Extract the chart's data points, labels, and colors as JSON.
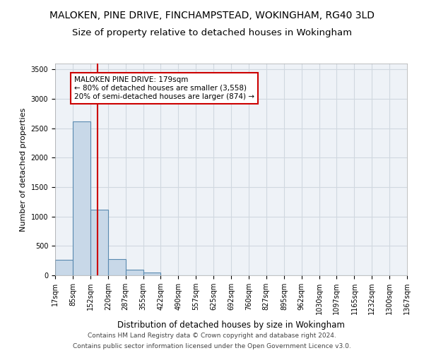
{
  "title": "MALOKEN, PINE DRIVE, FINCHAMPSTEAD, WOKINGHAM, RG40 3LD",
  "subtitle": "Size of property relative to detached houses in Wokingham",
  "xlabel": "Distribution of detached houses by size in Wokingham",
  "ylabel": "Number of detached properties",
  "bin_edges": [
    17,
    85,
    152,
    220,
    287,
    355,
    422,
    490,
    557,
    625,
    692,
    760,
    827,
    895,
    962,
    1030,
    1097,
    1165,
    1232,
    1300,
    1367
  ],
  "bar_heights": [
    270,
    2620,
    1120,
    280,
    95,
    50,
    0,
    0,
    0,
    0,
    0,
    0,
    0,
    0,
    0,
    0,
    0,
    0,
    0,
    0
  ],
  "bar_color": "#c8d8e8",
  "bar_edge_color": "#5a8ab0",
  "property_size": 179,
  "property_line_color": "#cc0000",
  "annotation_text": "MALOKEN PINE DRIVE: 179sqm\n← 80% of detached houses are smaller (3,558)\n20% of semi-detached houses are larger (874) →",
  "annotation_box_color": "#ffffff",
  "annotation_box_edge_color": "#cc0000",
  "ylim": [
    0,
    3600
  ],
  "yticks": [
    0,
    500,
    1000,
    1500,
    2000,
    2500,
    3000,
    3500
  ],
  "grid_color": "#d0d8e0",
  "background_color": "#eef2f7",
  "footer_line1": "Contains HM Land Registry data © Crown copyright and database right 2024.",
  "footer_line2": "Contains public sector information licensed under the Open Government Licence v3.0.",
  "title_fontsize": 10,
  "subtitle_fontsize": 9.5,
  "xlabel_fontsize": 8.5,
  "ylabel_fontsize": 8,
  "tick_fontsize": 7,
  "annotation_fontsize": 7.5,
  "footer_fontsize": 6.5
}
